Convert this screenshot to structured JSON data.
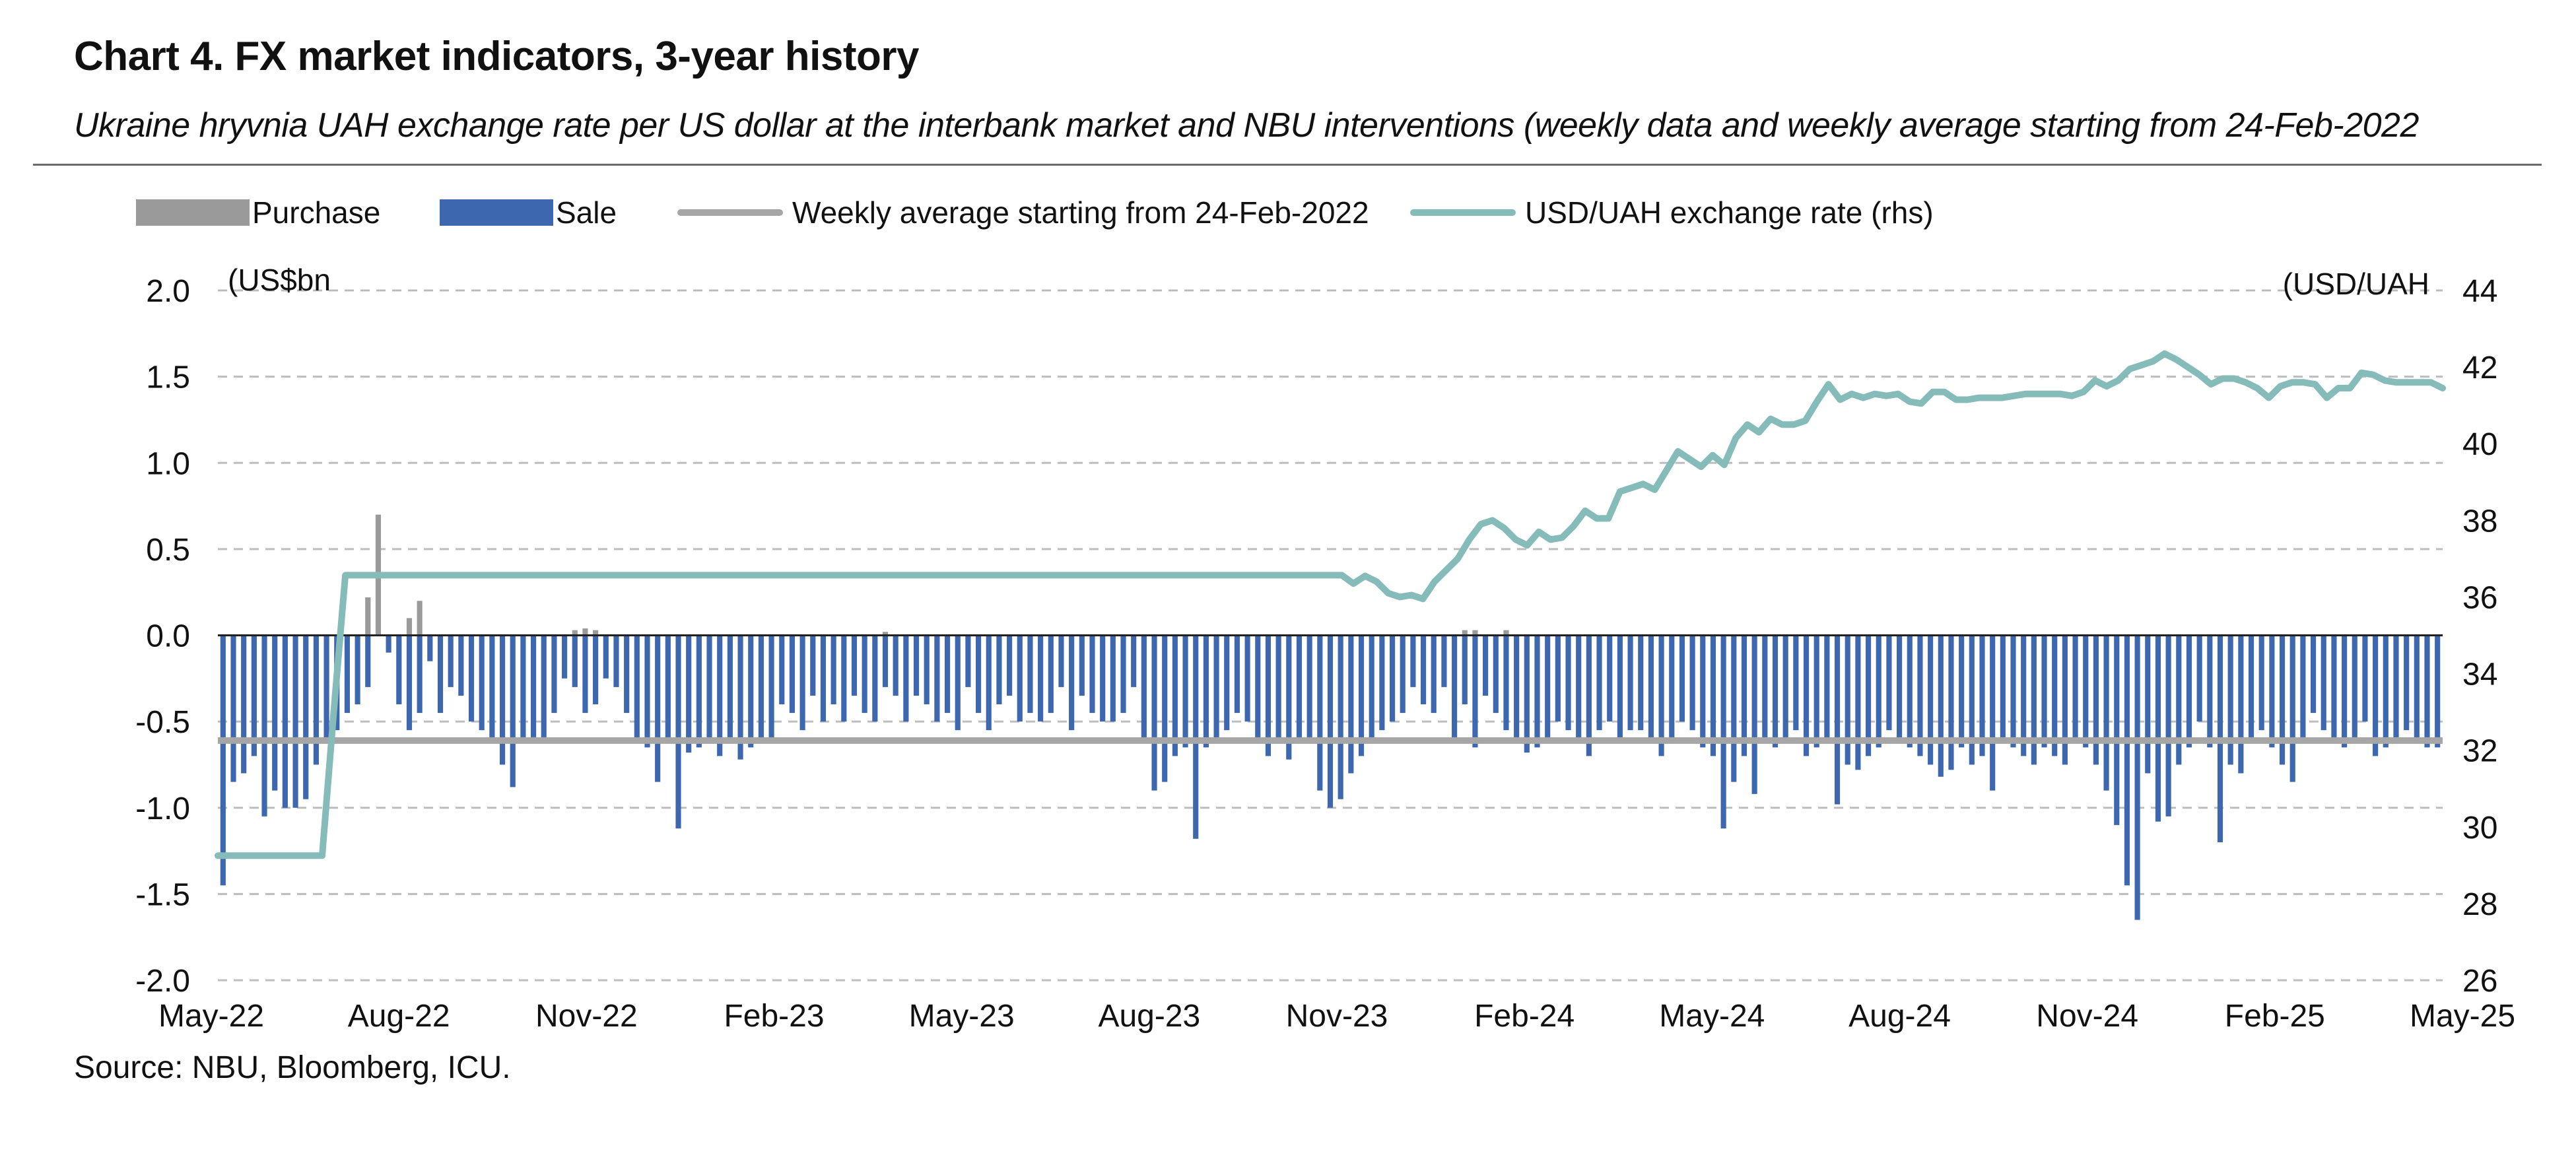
{
  "title": "Chart 4. FX market indicators, 3-year history",
  "subtitle": "Ukraine hryvnia UAH exchange rate per US dollar at the interbank market and NBU interventions (weekly data and weekly average starting from 24-Feb-2022",
  "source": "Source: NBU, Bloomberg, ICU.",
  "legend": [
    {
      "label": "Purchase",
      "kind": "box",
      "color": "#9a9a9a"
    },
    {
      "label": "Sale",
      "kind": "box",
      "color": "#3d68b0"
    },
    {
      "label": "Weekly average starting from 24-Feb-2022",
      "kind": "line",
      "color": "#a6a6a6"
    },
    {
      "label": "USD/UAH exchange rate (rhs)",
      "kind": "line",
      "color": "#85bbb8"
    }
  ],
  "chart_data": {
    "type": "bar",
    "left_axis": {
      "unit_label": "(US$bn",
      "ylim": [
        -2.0,
        2.0
      ],
      "ticks": [
        "2.0",
        "1.5",
        "1.0",
        "0.5",
        "0.0",
        "-0.5",
        "-1.0",
        "-1.5",
        "-2.0"
      ]
    },
    "right_axis": {
      "unit_label": "(USD/UAH",
      "ylim": [
        26,
        44
      ],
      "ticks": [
        "44",
        "42",
        "40",
        "38",
        "36",
        "34",
        "32",
        "30",
        "28",
        "26"
      ]
    },
    "x_tick_labels": [
      "May-22",
      "Aug-22",
      "Nov-22",
      "Feb-23",
      "May-23",
      "Aug-23",
      "Nov-23",
      "Feb-24",
      "May-24",
      "Aug-24",
      "Nov-24",
      "Feb-25",
      "May-25"
    ],
    "grid": true,
    "legend_position": "top",
    "colors": {
      "purchase": "#9a9a9a",
      "sale": "#3d68b0",
      "average": "#a6a6a6",
      "fx": "#85bbb8"
    },
    "weeks_from": "May-22",
    "weeks_to": "May-25",
    "series": [
      {
        "name": "Purchase",
        "axis": "left",
        "values": [
          0,
          0,
          0,
          0,
          0,
          0,
          0,
          0,
          0,
          0,
          0,
          0,
          0,
          0,
          0.22,
          0.7,
          0,
          0,
          0.1,
          0.2,
          0,
          0,
          0,
          0,
          0,
          0,
          0,
          0,
          0,
          0,
          0,
          0,
          0,
          0,
          0.03,
          0.04,
          0.03,
          0,
          0,
          0,
          0,
          0,
          0,
          0,
          0,
          0,
          0,
          0,
          0,
          0,
          0,
          0,
          0,
          0,
          0,
          0,
          0,
          0,
          0,
          0,
          0,
          0,
          0,
          0,
          0.02,
          0,
          0,
          0,
          0,
          0,
          0,
          0,
          0,
          0,
          0,
          0,
          0,
          0,
          0,
          0,
          0,
          0,
          0,
          0,
          0,
          0,
          0,
          0,
          0,
          0,
          0,
          0,
          0,
          0,
          0,
          0,
          0,
          0,
          0,
          0,
          0,
          0,
          0,
          0,
          0,
          0,
          0,
          0,
          0,
          0,
          0,
          0,
          0,
          0,
          0,
          0,
          0,
          0,
          0,
          0,
          0.03,
          0.03,
          0,
          0,
          0.03,
          0,
          0,
          0,
          0,
          0,
          0,
          0,
          0,
          0,
          0,
          0,
          0,
          0,
          0,
          0,
          0,
          0,
          0,
          0,
          0,
          0,
          0,
          0,
          0,
          0,
          0,
          0,
          0,
          0,
          0,
          0,
          0,
          0,
          0,
          0,
          0,
          0,
          0,
          0,
          0,
          0,
          0,
          0,
          0,
          0,
          0,
          0,
          0,
          0,
          0,
          0,
          0,
          0,
          0,
          0,
          0,
          0,
          0,
          0,
          0,
          0,
          0,
          0,
          0,
          0,
          0,
          0,
          0,
          0,
          0,
          0,
          0,
          0,
          0,
          0,
          0,
          0
        ]
      },
      {
        "name": "Sale",
        "axis": "left",
        "values": [
          -1.45,
          -0.85,
          -0.8,
          -0.7,
          -1.05,
          -0.9,
          -1.0,
          -1.0,
          -0.95,
          -0.75,
          -0.6,
          -0.55,
          -0.45,
          -0.4,
          -0.3,
          0,
          -0.1,
          -0.4,
          -0.55,
          -0.45,
          -0.15,
          -0.45,
          -0.3,
          -0.35,
          -0.5,
          -0.55,
          -0.62,
          -0.75,
          -0.88,
          -0.6,
          -0.62,
          -0.62,
          -0.45,
          -0.25,
          -0.3,
          -0.45,
          -0.4,
          -0.25,
          -0.3,
          -0.45,
          -0.6,
          -0.65,
          -0.85,
          -0.6,
          -1.12,
          -0.68,
          -0.65,
          -0.6,
          -0.7,
          -0.6,
          -0.72,
          -0.65,
          -0.6,
          -0.6,
          -0.4,
          -0.45,
          -0.55,
          -0.35,
          -0.5,
          -0.4,
          -0.5,
          -0.35,
          -0.45,
          -0.5,
          -0.3,
          -0.35,
          -0.5,
          -0.35,
          -0.4,
          -0.5,
          -0.45,
          -0.55,
          -0.3,
          -0.45,
          -0.55,
          -0.4,
          -0.35,
          -0.5,
          -0.45,
          -0.5,
          -0.45,
          -0.3,
          -0.55,
          -0.35,
          -0.45,
          -0.5,
          -0.5,
          -0.45,
          -0.3,
          -0.6,
          -0.9,
          -0.85,
          -0.7,
          -0.65,
          -1.18,
          -0.65,
          -0.6,
          -0.55,
          -0.45,
          -0.5,
          -0.6,
          -0.7,
          -0.62,
          -0.72,
          -0.6,
          -0.6,
          -0.9,
          -1.0,
          -0.95,
          -0.8,
          -0.7,
          -0.6,
          -0.55,
          -0.5,
          -0.45,
          -0.3,
          -0.4,
          -0.45,
          -0.3,
          -0.6,
          -0.4,
          -0.65,
          -0.35,
          -0.45,
          -0.55,
          -0.6,
          -0.68,
          -0.65,
          -0.6,
          -0.5,
          -0.55,
          -0.62,
          -0.7,
          -0.55,
          -0.5,
          -0.6,
          -0.55,
          -0.55,
          -0.6,
          -0.7,
          -0.6,
          -0.5,
          -0.55,
          -0.65,
          -0.7,
          -1.12,
          -0.85,
          -0.7,
          -0.92,
          -0.6,
          -0.65,
          -0.6,
          -0.55,
          -0.7,
          -0.65,
          -0.6,
          -0.98,
          -0.75,
          -0.78,
          -0.7,
          -0.65,
          -0.55,
          -0.6,
          -0.65,
          -0.7,
          -0.75,
          -0.82,
          -0.78,
          -0.65,
          -0.75,
          -0.7,
          -0.9,
          -0.6,
          -0.65,
          -0.7,
          -0.75,
          -0.65,
          -0.7,
          -0.75,
          -0.6,
          -0.65,
          -0.75,
          -0.9,
          -1.1,
          -1.45,
          -1.65,
          -0.8,
          -1.08,
          -1.05,
          -0.75,
          -0.65,
          -0.5,
          -0.65,
          -1.2,
          -0.75,
          -0.8,
          -0.6,
          -0.55,
          -0.65,
          -0.75,
          -0.85,
          -0.6,
          -0.45,
          -0.55,
          -0.6,
          -0.65,
          -0.6,
          -0.5,
          -0.7,
          -0.65,
          -0.6,
          -0.55,
          -0.6,
          -0.65,
          -0.65
        ]
      },
      {
        "name": "Weekly average starting from 24-Feb-2022",
        "axis": "left",
        "values_const": -0.61
      },
      {
        "name": "USD/UAH exchange rate (rhs)",
        "axis": "right",
        "values": [
          29.25,
          29.25,
          29.25,
          29.25,
          29.25,
          29.25,
          29.25,
          29.25,
          29.25,
          29.25,
          33,
          36.57,
          36.57,
          36.57,
          36.57,
          36.57,
          36.57,
          36.57,
          36.57,
          36.57,
          36.57,
          36.57,
          36.57,
          36.57,
          36.57,
          36.57,
          36.57,
          36.57,
          36.57,
          36.57,
          36.57,
          36.57,
          36.57,
          36.57,
          36.57,
          36.57,
          36.57,
          36.57,
          36.57,
          36.57,
          36.57,
          36.57,
          36.57,
          36.57,
          36.57,
          36.57,
          36.57,
          36.57,
          36.57,
          36.57,
          36.57,
          36.57,
          36.57,
          36.57,
          36.57,
          36.57,
          36.57,
          36.57,
          36.57,
          36.57,
          36.57,
          36.57,
          36.57,
          36.57,
          36.57,
          36.57,
          36.57,
          36.57,
          36.57,
          36.57,
          36.57,
          36.57,
          36.57,
          36.57,
          36.57,
          36.57,
          36.57,
          36.57,
          36.57,
          36.57,
          36.57,
          36.57,
          36.57,
          36.57,
          36.57,
          36.57,
          36.57,
          36.57,
          36.57,
          36.57,
          36.57,
          36.57,
          36.57,
          36.57,
          36.57,
          36.57,
          36.57,
          36.57,
          36.35,
          36.55,
          36.4,
          36.1,
          36.0,
          36.05,
          35.95,
          36.4,
          36.7,
          37.0,
          37.5,
          37.9,
          38.0,
          37.8,
          37.5,
          37.35,
          37.7,
          37.5,
          37.55,
          37.85,
          38.25,
          38.05,
          38.05,
          38.75,
          38.85,
          38.95,
          38.8,
          39.3,
          39.8,
          39.6,
          39.4,
          39.7,
          39.45,
          40.15,
          40.5,
          40.3,
          40.65,
          40.5,
          40.5,
          40.6,
          41.1,
          41.55,
          41.15,
          41.3,
          41.2,
          41.3,
          41.25,
          41.3,
          41.1,
          41.05,
          41.35,
          41.35,
          41.15,
          41.15,
          41.2,
          41.2,
          41.2,
          41.25,
          41.3,
          41.3,
          41.3,
          41.3,
          41.25,
          41.35,
          41.65,
          41.5,
          41.65,
          41.95,
          42.05,
          42.15,
          42.35,
          42.2,
          42.0,
          41.8,
          41.55,
          41.7,
          41.7,
          41.6,
          41.45,
          41.2,
          41.5,
          41.6,
          41.6,
          41.55,
          41.2,
          41.45,
          41.45,
          41.85,
          41.8,
          41.65,
          41.6,
          41.6,
          41.6,
          41.6,
          41.45
        ]
      }
    ]
  }
}
